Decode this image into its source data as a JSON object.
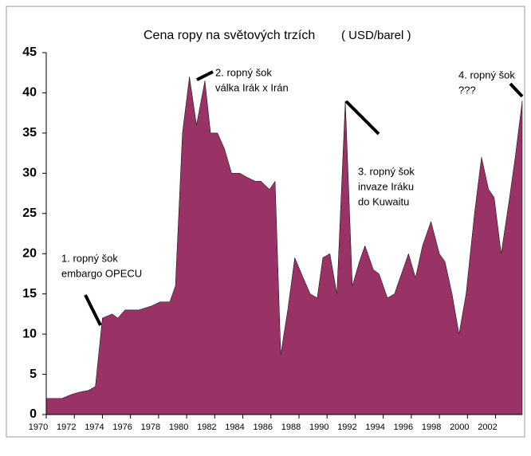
{
  "chart_data": {
    "type": "area",
    "title": "Cena ropy na světových trzích",
    "subtitle": "( USD/barel )",
    "color": "#993366",
    "x": [
      1970.0,
      1971.1,
      1971.8,
      1972.4,
      1973.0,
      1973.5,
      1974.0,
      1974.7,
      1975.1,
      1975.6,
      1976.6,
      1977.5,
      1978.1,
      1978.8,
      1979.2,
      1979.7,
      1980.2,
      1980.7,
      1981.3,
      1981.7,
      1982.2,
      1982.7,
      1983.2,
      1983.8,
      1984.3,
      1984.9,
      1985.3,
      1985.9,
      1986.3,
      1986.7,
      1987.2,
      1987.7,
      1988.3,
      1988.8,
      1989.3,
      1989.7,
      1990.2,
      1990.7,
      1991.3,
      1991.8,
      1992.3,
      1992.7,
      1993.3,
      1993.7,
      1994.3,
      1994.8,
      1995.2,
      1995.8,
      1996.3,
      1996.8,
      1997.4,
      1998.0,
      1998.4,
      1998.9,
      1999.4,
      1999.9,
      2000.5,
      2001.0,
      2001.5,
      2001.9,
      2002.4,
      2003.0,
      2003.4,
      2003.9
    ],
    "values": [
      2,
      2,
      2.5,
      2.8,
      3,
      3.5,
      12,
      12.5,
      12,
      13,
      13,
      13.5,
      14,
      14,
      16,
      35,
      42,
      36,
      41.5,
      35,
      35,
      33,
      30,
      30,
      29.5,
      29,
      29,
      28,
      29,
      7.5,
      13,
      19.5,
      17,
      15,
      14.5,
      19.5,
      20,
      15,
      39,
      16,
      19,
      21,
      18,
      17.5,
      14.5,
      15,
      17,
      20,
      17,
      21,
      24,
      20,
      19,
      15,
      10,
      15,
      25,
      32,
      28,
      27,
      20,
      27,
      32,
      39
    ],
    "xlim": [
      1970,
      2003.9
    ],
    "ylim": [
      0,
      45
    ],
    "xticks": [
      1970,
      1972,
      1974,
      1976,
      1978,
      1980,
      1982,
      1984,
      1986,
      1988,
      1990,
      1992,
      1994,
      1996,
      1998,
      2000,
      2002
    ],
    "yticks": [
      0,
      5,
      10,
      15,
      20,
      25,
      30,
      35,
      40,
      45
    ],
    "annotations": [
      {
        "lines": [
          "1. ropný šok",
          "embargo OPECU"
        ]
      },
      {
        "lines": [
          "2. ropný šok",
          "válka Irák x Irán"
        ]
      },
      {
        "lines": [
          "3. ropný šok",
          "invaze Iráku",
          "do Kuwaitu"
        ]
      },
      {
        "lines": [
          "4. ropný šok",
          "???"
        ]
      }
    ]
  }
}
